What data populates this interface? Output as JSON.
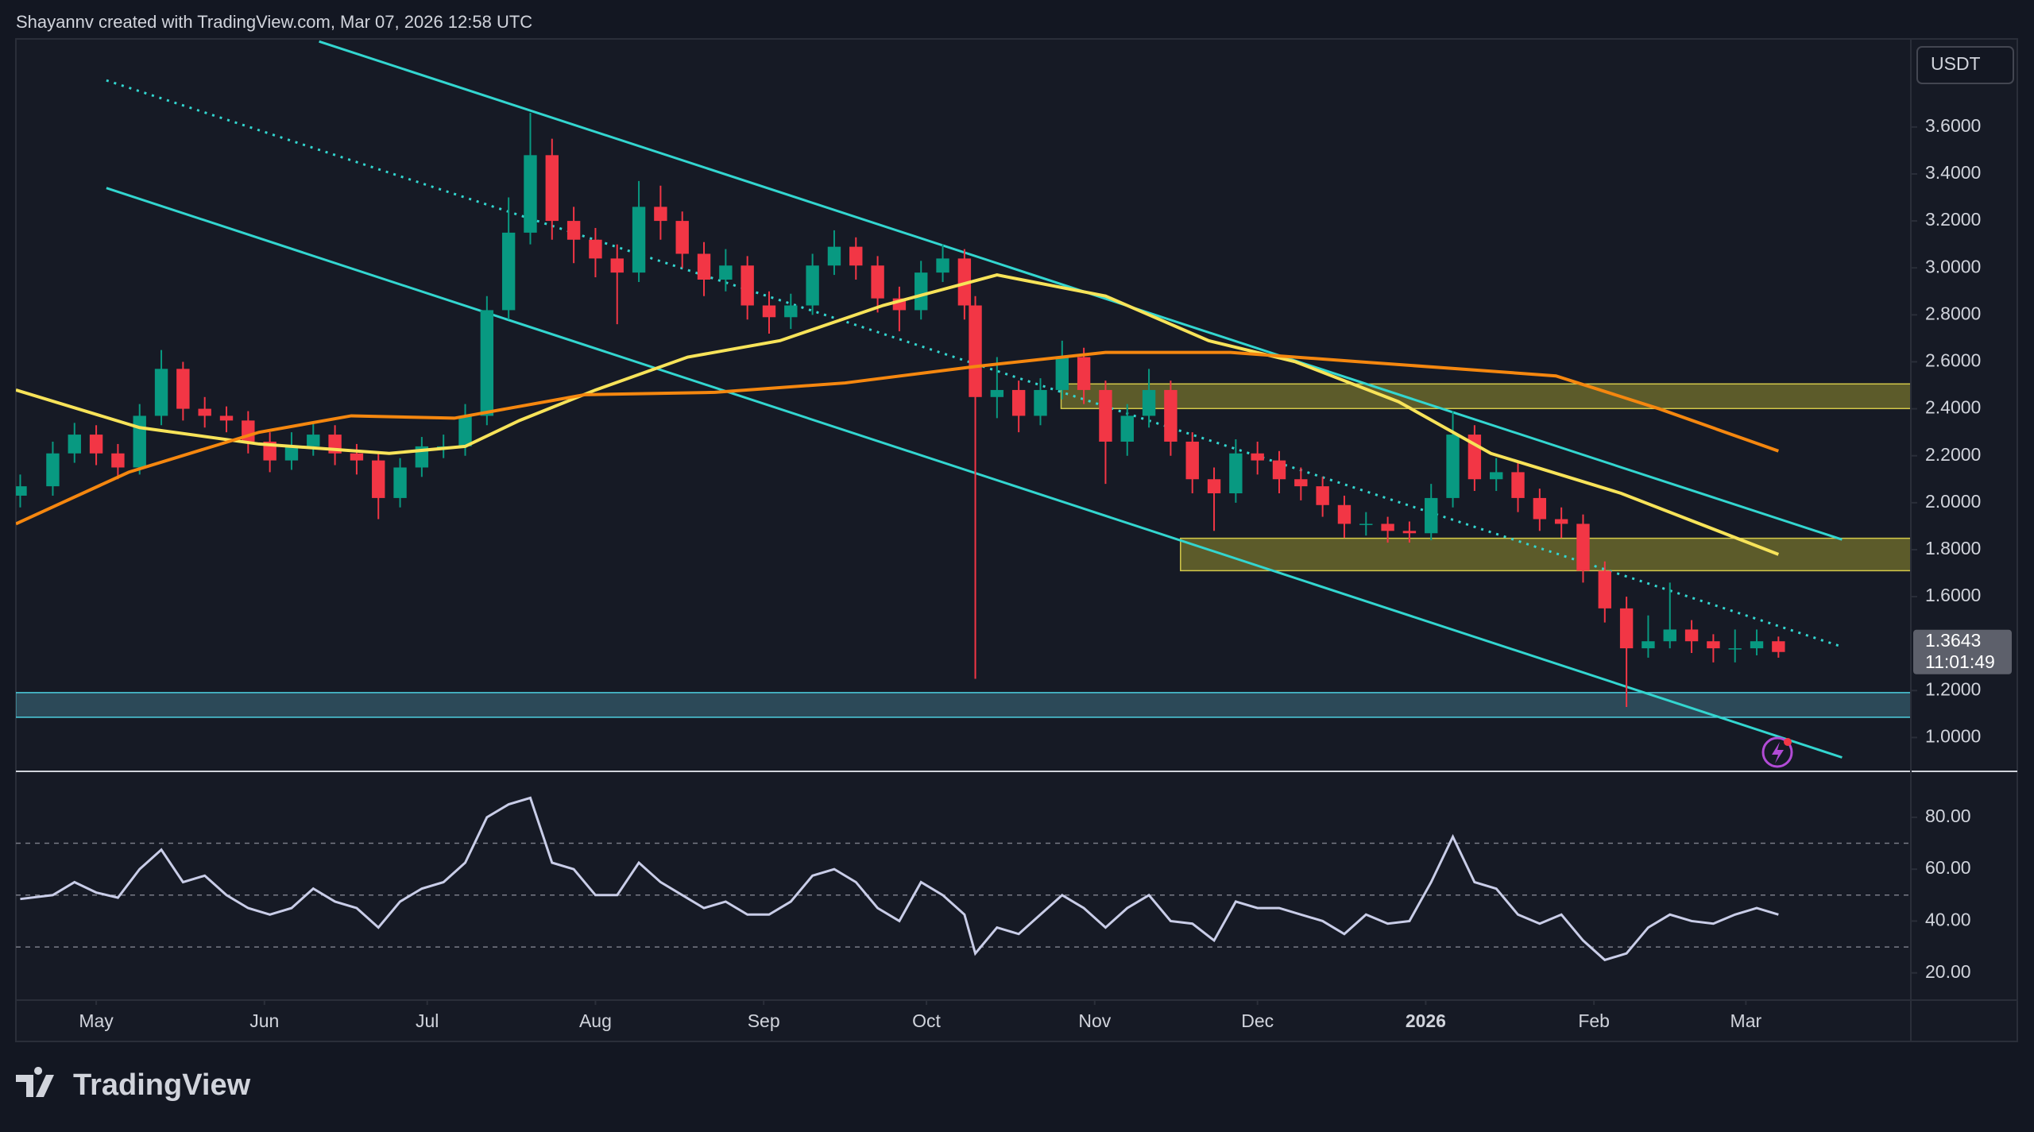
{
  "header": "Shayannv created with TradingView.com, Mar 07, 2026 12:58 UTC",
  "brand": "TradingView",
  "chart_data": [
    {
      "type": "candlestick",
      "currency": "USDT",
      "countdown": "11:01:49",
      "up_color": "#089981",
      "down_color": "#f23645",
      "xlim": [
        -14.8,
        334.4
      ],
      "xticks": [
        {
          "value": 0,
          "label": "May"
        },
        {
          "value": 31,
          "label": "Jun"
        },
        {
          "value": 61,
          "label": "Jul"
        },
        {
          "value": 92,
          "label": "Aug"
        },
        {
          "value": 123,
          "label": "Sep"
        },
        {
          "value": 153,
          "label": "Oct"
        },
        {
          "value": 184,
          "label": "Nov"
        },
        {
          "value": 214,
          "label": "Dec"
        },
        {
          "value": 245,
          "label": "2026"
        },
        {
          "value": 276,
          "label": "Feb"
        },
        {
          "value": 304,
          "label": "Mar"
        }
      ],
      "ylim": [
        0.856,
        3.975
      ],
      "yticks": [
        {
          "value": 3.6,
          "label": "3.6000"
        },
        {
          "value": 3.4,
          "label": "3.4000"
        },
        {
          "value": 3.2,
          "label": "3.2000"
        },
        {
          "value": 3,
          "label": "3.0000"
        },
        {
          "value": 2.8,
          "label": "2.8000"
        },
        {
          "value": 2.6,
          "label": "2.6000"
        },
        {
          "value": 2.4,
          "label": "2.4000"
        },
        {
          "value": 2.2,
          "label": "2.2000"
        },
        {
          "value": 2,
          "label": "2.0000"
        },
        {
          "value": 1.8,
          "label": "1.8000"
        },
        {
          "value": 1.6,
          "label": "1.6000"
        },
        {
          "value": 1.2,
          "label": "1.2000"
        },
        {
          "value": 1,
          "label": "1.0000"
        }
      ],
      "x": [
        -14,
        -8,
        -4,
        0,
        4,
        8,
        12,
        16,
        20,
        24,
        28,
        32,
        36,
        40,
        44,
        48,
        52,
        56,
        60,
        64,
        68,
        72,
        76,
        80,
        84,
        88,
        92,
        96,
        100,
        104,
        108,
        112,
        116,
        120,
        124,
        128,
        132,
        136,
        140,
        144,
        148,
        152,
        156,
        160,
        162,
        166,
        170,
        174,
        178,
        182,
        186,
        190,
        194,
        198,
        202,
        206,
        210,
        214,
        218,
        222,
        226,
        230,
        234,
        238,
        242,
        246,
        250,
        254,
        258,
        262,
        266,
        270,
        274,
        278,
        282,
        286,
        290,
        294,
        298,
        302,
        306,
        310
      ],
      "open": [
        2.03,
        2.07,
        2.21,
        2.29,
        2.21,
        2.15,
        2.37,
        2.57,
        2.4,
        2.37,
        2.35,
        2.26,
        2.18,
        2.24,
        2.29,
        2.21,
        2.18,
        2.02,
        2.15,
        2.24,
        2.24,
        2.37,
        2.82,
        3.15,
        3.48,
        3.2,
        3.12,
        3.04,
        2.98,
        3.26,
        3.2,
        3.06,
        2.95,
        3.01,
        2.84,
        2.79,
        2.84,
        3.01,
        3.09,
        3.01,
        2.87,
        2.82,
        2.98,
        3.04,
        2.84,
        2.45,
        2.48,
        2.37,
        2.48,
        2.62,
        2.48,
        2.26,
        2.37,
        2.48,
        2.26,
        2.1,
        2.04,
        2.21,
        2.18,
        2.1,
        2.07,
        1.99,
        1.91,
        1.91,
        1.88,
        1.87,
        2.02,
        2.29,
        2.1,
        2.13,
        2.02,
        1.93,
        1.91,
        1.71,
        1.55,
        1.38,
        1.41,
        1.46,
        1.41,
        1.38,
        1.38,
        1.41
      ],
      "high": [
        2.12,
        2.26,
        2.34,
        2.33,
        2.25,
        2.42,
        2.65,
        2.6,
        2.45,
        2.41,
        2.39,
        2.3,
        2.3,
        2.34,
        2.33,
        2.25,
        2.21,
        2.19,
        2.28,
        2.29,
        2.42,
        2.88,
        3.3,
        3.66,
        3.55,
        3.26,
        3.17,
        3.1,
        3.37,
        3.35,
        3.24,
        3.11,
        3.08,
        3.05,
        2.9,
        2.89,
        3.06,
        3.16,
        3.13,
        3.05,
        2.92,
        3.03,
        3.1,
        3.08,
        2.88,
        2.62,
        2.52,
        2.53,
        2.69,
        2.66,
        2.52,
        2.42,
        2.57,
        2.52,
        2.3,
        2.15,
        2.27,
        2.26,
        2.22,
        2.15,
        2.11,
        2.03,
        1.96,
        1.94,
        1.92,
        2.08,
        2.39,
        2.33,
        2.19,
        2.17,
        2.06,
        1.98,
        1.95,
        1.75,
        1.6,
        1.52,
        1.66,
        1.5,
        1.44,
        1.46,
        1.46,
        1.43
      ],
      "low": [
        1.98,
        2.03,
        2.17,
        2.16,
        2.1,
        2.12,
        2.33,
        2.35,
        2.32,
        2.3,
        2.21,
        2.13,
        2.14,
        2.2,
        2.16,
        2.12,
        1.93,
        1.98,
        2.11,
        2.19,
        2.2,
        2.33,
        2.78,
        3.1,
        3.12,
        3.02,
        2.96,
        2.76,
        2.94,
        3.12,
        3.0,
        2.88,
        2.9,
        2.78,
        2.72,
        2.74,
        2.8,
        2.97,
        2.95,
        2.81,
        2.73,
        2.78,
        2.94,
        2.78,
        1.25,
        2.36,
        2.3,
        2.33,
        2.44,
        2.42,
        2.08,
        2.2,
        2.32,
        2.2,
        2.04,
        1.88,
        2.0,
        2.12,
        2.04,
        2.01,
        1.94,
        1.85,
        1.86,
        1.83,
        1.83,
        1.84,
        1.98,
        2.05,
        2.05,
        1.96,
        1.88,
        1.85,
        1.66,
        1.49,
        1.13,
        1.34,
        1.38,
        1.36,
        1.32,
        1.32,
        1.35,
        1.34
      ],
      "close": [
        2.07,
        2.21,
        2.29,
        2.21,
        2.15,
        2.37,
        2.57,
        2.4,
        2.37,
        2.35,
        2.26,
        2.18,
        2.24,
        2.29,
        2.21,
        2.18,
        2.02,
        2.15,
        2.24,
        2.24,
        2.37,
        2.82,
        3.15,
        3.48,
        3.2,
        3.12,
        3.04,
        2.98,
        3.26,
        3.2,
        3.06,
        2.95,
        3.01,
        2.84,
        2.79,
        2.84,
        3.01,
        3.09,
        3.01,
        2.87,
        2.82,
        2.98,
        3.04,
        2.84,
        2.45,
        2.48,
        2.37,
        2.48,
        2.62,
        2.48,
        2.26,
        2.37,
        2.48,
        2.26,
        2.1,
        2.04,
        2.21,
        2.18,
        2.1,
        2.07,
        1.99,
        1.91,
        1.91,
        1.88,
        1.87,
        2.02,
        2.29,
        2.1,
        2.13,
        2.02,
        1.93,
        1.91,
        1.71,
        1.55,
        1.38,
        1.41,
        1.46,
        1.41,
        1.38,
        1.38,
        1.41,
        1.3643
      ],
      "moving_averages": [
        {
          "color": "#f7e359",
          "x": [
            -14.8,
            8,
            30,
            54,
            68,
            78,
            92,
            109,
            126,
            145,
            166,
            186,
            205,
            221,
            240,
            257,
            281,
            310
          ],
          "values": [
            2.48,
            2.32,
            2.25,
            2.21,
            2.24,
            2.35,
            2.48,
            2.62,
            2.69,
            2.84,
            2.97,
            2.88,
            2.69,
            2.6,
            2.43,
            2.21,
            2.04,
            1.78
          ]
        },
        {
          "color": "#f5870f",
          "x": [
            -14.8,
            6,
            30,
            47,
            66,
            90,
            114,
            138,
            162,
            186,
            209,
            233,
            269,
            288,
            310
          ],
          "values": [
            1.91,
            2.13,
            2.3,
            2.37,
            2.36,
            2.46,
            2.47,
            2.51,
            2.58,
            2.64,
            2.64,
            2.6,
            2.54,
            2.4,
            2.22
          ]
        }
      ]
    },
    {
      "type": "line",
      "color": "#c9cde8",
      "ylim": [
        9.5,
        96.5
      ],
      "yticks": [
        {
          "value": 80,
          "label": "80.00"
        },
        {
          "value": 60,
          "label": "60.00"
        },
        {
          "value": 40,
          "label": "40.00"
        },
        {
          "value": 20,
          "label": "20.00"
        }
      ],
      "band_lines": [
        70,
        50,
        30
      ],
      "values": [
        48.5,
        50,
        55,
        51,
        49,
        60,
        67.5,
        55,
        57.5,
        50,
        45,
        42.5,
        45,
        52.5,
        47.5,
        45,
        37.5,
        47.5,
        52.5,
        55,
        62.5,
        80,
        85,
        87.5,
        62.5,
        60,
        50,
        50,
        62.5,
        55,
        50,
        45,
        47.5,
        42.5,
        42.5,
        47.5,
        57.5,
        60,
        55,
        45,
        40,
        55,
        50,
        42.5,
        27.5,
        37.5,
        35,
        42.5,
        50,
        45,
        37.5,
        45,
        50,
        40,
        39,
        32.5,
        47.5,
        45,
        45,
        42.5,
        40,
        35,
        42.5,
        39,
        40,
        55,
        72.5,
        55,
        52.5,
        42.5,
        39,
        42.5,
        32.5,
        25,
        27.5,
        37.5,
        42.5,
        40,
        39,
        42.5,
        45,
        42.5
      ]
    }
  ]
}
